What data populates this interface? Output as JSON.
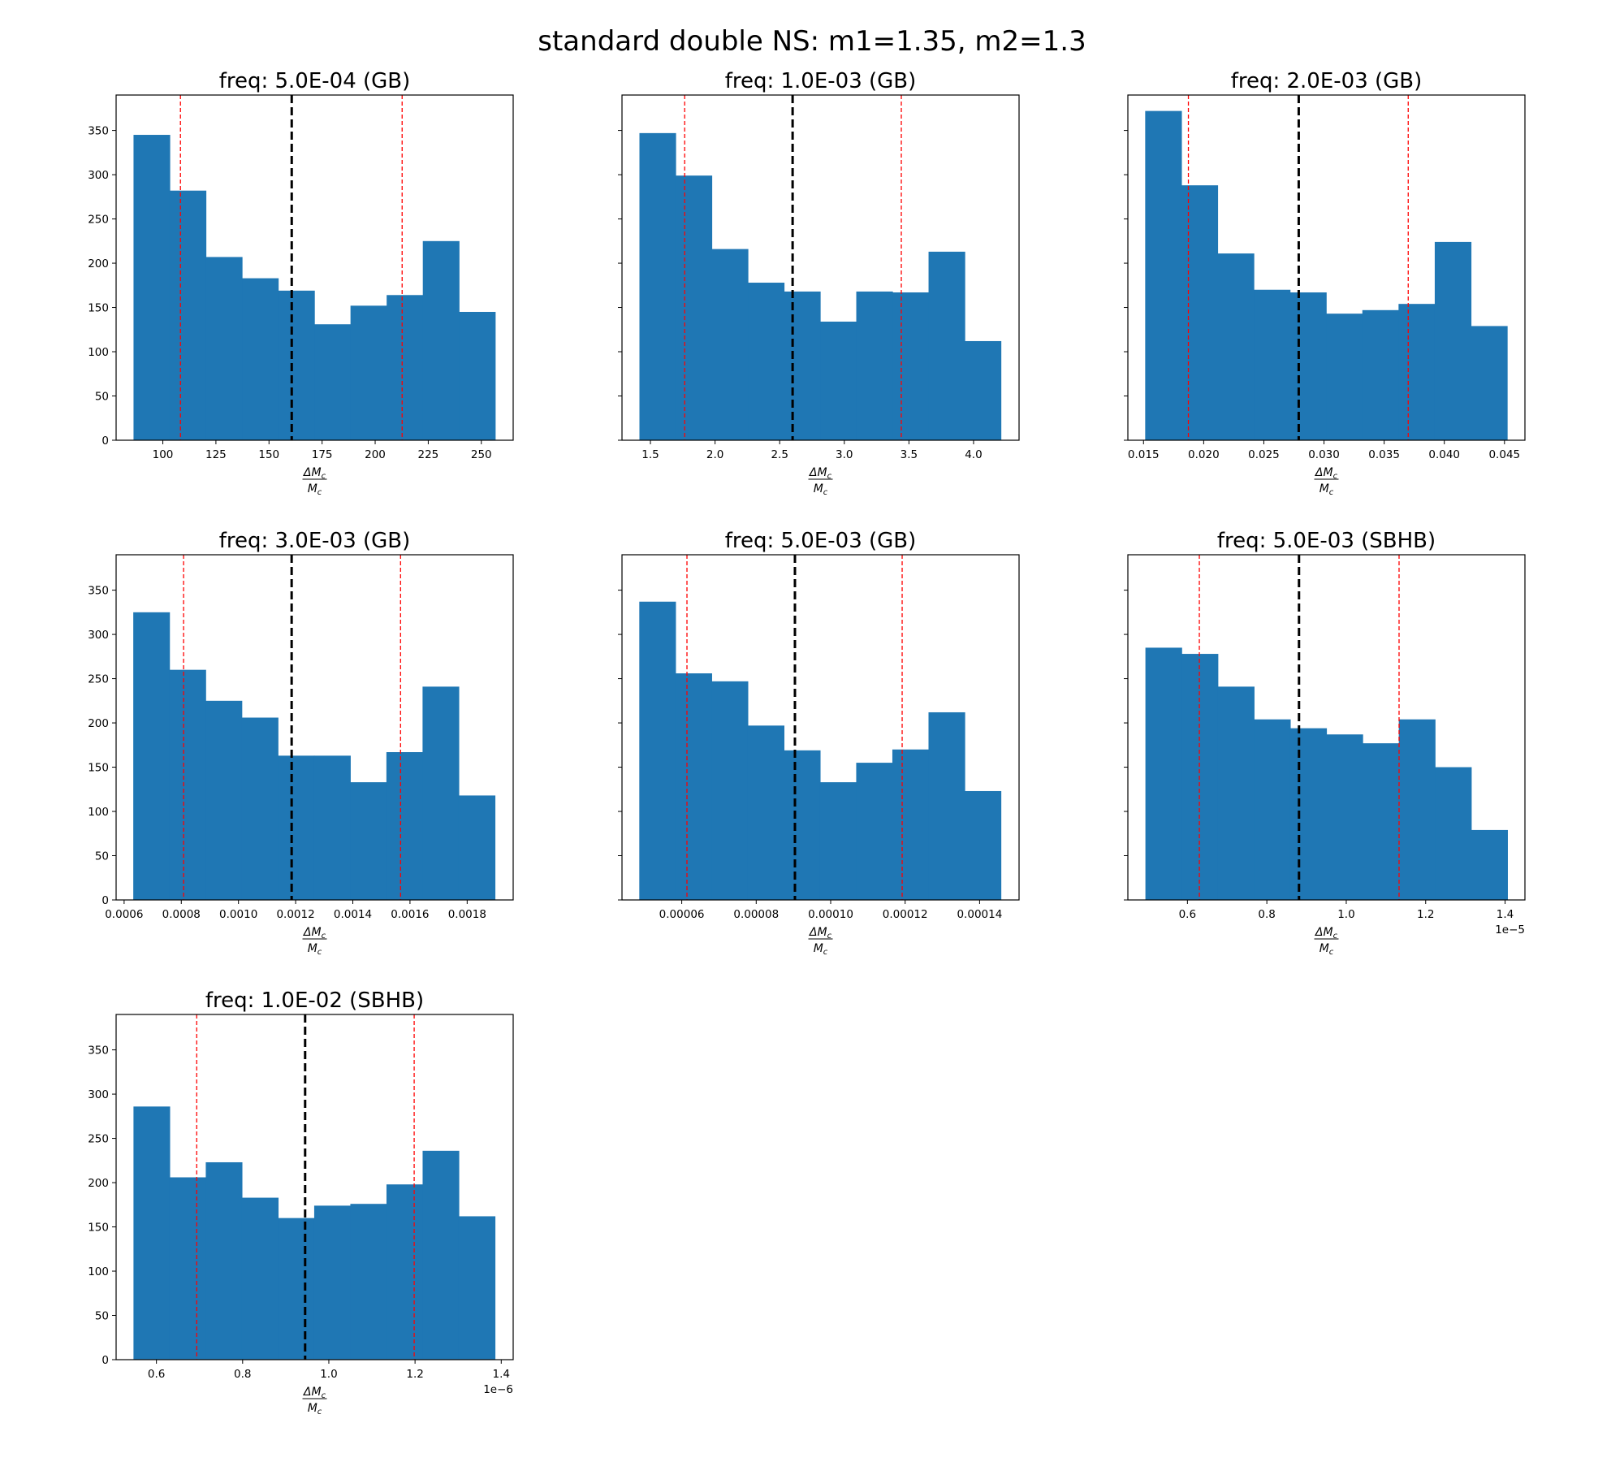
{
  "figure_title": "standard double NS: m1=1.35, m2=1.3",
  "colors": {
    "bar": "#1f77b4",
    "median": "#000000",
    "interval": "#ff0000",
    "axis": "#000000"
  },
  "chart_data": [
    {
      "type": "bar",
      "title": "freq: 5.0E-04 (GB)",
      "xlabel_num": "ΔM",
      "xlabel_sub": "c",
      "xlabel_den": "M",
      "ylabel": "",
      "ylim": [
        0,
        390
      ],
      "yticks": [
        0,
        50,
        100,
        150,
        200,
        250,
        300,
        350
      ],
      "show_ytick_labels": true,
      "xlim": [
        78,
        265
      ],
      "xticks": [
        100,
        125,
        150,
        175,
        200,
        225,
        250
      ],
      "xtick_labels": [
        "100",
        "125",
        "150",
        "175",
        "200",
        "225",
        "250"
      ],
      "offset_text": "",
      "bin_range": [
        86.2,
        256.5
      ],
      "counts": [
        345,
        282,
        207,
        183,
        169,
        131,
        152,
        164,
        225,
        145
      ],
      "median": 160.7,
      "lower": 108.3,
      "upper": 212.7
    },
    {
      "type": "bar",
      "title": "freq: 1.0E-03 (GB)",
      "xlabel_num": "ΔM",
      "xlabel_sub": "c",
      "xlabel_den": "M",
      "ylabel": "",
      "ylim": [
        0,
        390
      ],
      "yticks": [
        0,
        50,
        100,
        150,
        200,
        250,
        300,
        350
      ],
      "show_ytick_labels": false,
      "xlim": [
        1.28,
        4.352
      ],
      "xticks": [
        1.5,
        2.0,
        2.5,
        3.0,
        3.5,
        4.0
      ],
      "xtick_labels": [
        "1.5",
        "2.0",
        "2.5",
        "3.0",
        "3.5",
        "4.0"
      ],
      "offset_text": "",
      "bin_range": [
        1.415,
        4.211
      ],
      "counts": [
        347,
        299,
        216,
        178,
        168,
        134,
        168,
        167,
        213,
        112
      ],
      "median": 2.6,
      "lower": 1.765,
      "upper": 3.441
    },
    {
      "type": "bar",
      "title": "freq: 2.0E-03 (GB)",
      "xlabel_num": "ΔM",
      "xlabel_sub": "c",
      "xlabel_den": "M",
      "ylabel": "",
      "ylim": [
        0,
        390
      ],
      "yticks": [
        0,
        50,
        100,
        150,
        200,
        250,
        300,
        350
      ],
      "show_ytick_labels": false,
      "xlim": [
        0.0137,
        0.0467
      ],
      "xticks": [
        0.015,
        0.02,
        0.025,
        0.03,
        0.035,
        0.04,
        0.045
      ],
      "xtick_labels": [
        "0.015",
        "0.020",
        "0.025",
        "0.030",
        "0.035",
        "0.040",
        "0.045"
      ],
      "offset_text": "",
      "bin_range": [
        0.01514,
        0.04522
      ],
      "counts": [
        372,
        288,
        211,
        170,
        167,
        143,
        147,
        154,
        224,
        129
      ],
      "median": 0.0279,
      "lower": 0.01873,
      "upper": 0.037
    },
    {
      "type": "bar",
      "title": "freq: 3.0E-03 (GB)",
      "xlabel_num": "ΔM",
      "xlabel_sub": "c",
      "xlabel_den": "M",
      "ylabel": "",
      "ylim": [
        0,
        390
      ],
      "yticks": [
        0,
        50,
        100,
        150,
        200,
        250,
        300,
        350
      ],
      "show_ytick_labels": true,
      "xlim": [
        0.000572,
        0.001961
      ],
      "xticks": [
        0.0006,
        0.0008,
        0.001,
        0.0012,
        0.0014,
        0.0016,
        0.0018
      ],
      "xtick_labels": [
        "0.0006",
        "0.0008",
        "0.0010",
        "0.0012",
        "0.0014",
        "0.0016",
        "0.0018"
      ],
      "offset_text": "",
      "bin_range": [
        0.000632,
        0.001897
      ],
      "counts": [
        325,
        260,
        225,
        206,
        163,
        163,
        133,
        167,
        241,
        118
      ],
      "median": 0.001186,
      "lower": 0.000808,
      "upper": 0.001567
    },
    {
      "type": "bar",
      "title": "freq: 5.0E-03 (GB)",
      "xlabel_num": "ΔM",
      "xlabel_sub": "c",
      "xlabel_den": "M",
      "ylabel": "",
      "ylim": [
        0,
        390
      ],
      "yticks": [
        0,
        50,
        100,
        150,
        200,
        250,
        300,
        350
      ],
      "show_ytick_labels": false,
      "xlim": [
        4.395e-05,
        0.0001506
      ],
      "xticks": [
        6e-05,
        8e-05,
        0.0001,
        0.00012,
        0.00014
      ],
      "xtick_labels": [
        "0.00006",
        "0.00008",
        "0.00010",
        "0.00012",
        "0.00014"
      ],
      "offset_text": "",
      "bin_range": [
        4.86e-05,
        0.0001457
      ],
      "counts": [
        337,
        256,
        247,
        197,
        169,
        133,
        155,
        170,
        212,
        123
      ],
      "median": 9.04e-05,
      "lower": 6.14e-05,
      "upper": 0.0001192
    },
    {
      "type": "bar",
      "title": "freq: 5.0E-03 (SBHB)",
      "xlabel_num": "ΔM",
      "xlabel_sub": "c",
      "xlabel_den": "M",
      "ylabel": "",
      "ylim": [
        0,
        390
      ],
      "yticks": [
        0,
        50,
        100,
        150,
        200,
        250,
        300,
        350
      ],
      "show_ytick_labels": false,
      "xlim": [
        4.5e-06,
        1.45e-05
      ],
      "xticks": [
        6e-06,
        8e-06,
        1e-05,
        1.2e-05,
        1.4e-05
      ],
      "xtick_labels": [
        "0.6",
        "0.8",
        "1.0",
        "1.2",
        "1.4"
      ],
      "offset_text": "1e−5",
      "bin_range": [
        4.942e-06,
        1.4058e-05
      ],
      "counts": [
        285,
        278,
        241,
        204,
        194,
        187,
        177,
        204,
        150,
        79
      ],
      "median": 8.81e-06,
      "lower": 6.3e-06,
      "upper": 1.133e-05
    },
    {
      "type": "bar",
      "title": "freq: 1.0E-02 (SBHB)",
      "xlabel_num": "ΔM",
      "xlabel_sub": "c",
      "xlabel_den": "M",
      "ylabel": "",
      "ylim": [
        0,
        390
      ],
      "yticks": [
        0,
        50,
        100,
        150,
        200,
        250,
        300,
        350
      ],
      "show_ytick_labels": true,
      "xlim": [
        5.065e-07,
        1.4277e-06
      ],
      "xticks": [
        6e-07,
        8e-07,
        1e-06,
        1.2e-06,
        1.4e-06
      ],
      "xtick_labels": [
        "0.6",
        "0.8",
        "1.0",
        "1.2",
        "1.4"
      ],
      "offset_text": "1e−6",
      "bin_range": [
        5.468e-07,
        1.3853e-06
      ],
      "counts": [
        286,
        206,
        223,
        183,
        160,
        174,
        176,
        198,
        236,
        162
      ],
      "median": 9.45e-07,
      "lower": 6.935e-07,
      "upper": 1.198e-06
    }
  ]
}
